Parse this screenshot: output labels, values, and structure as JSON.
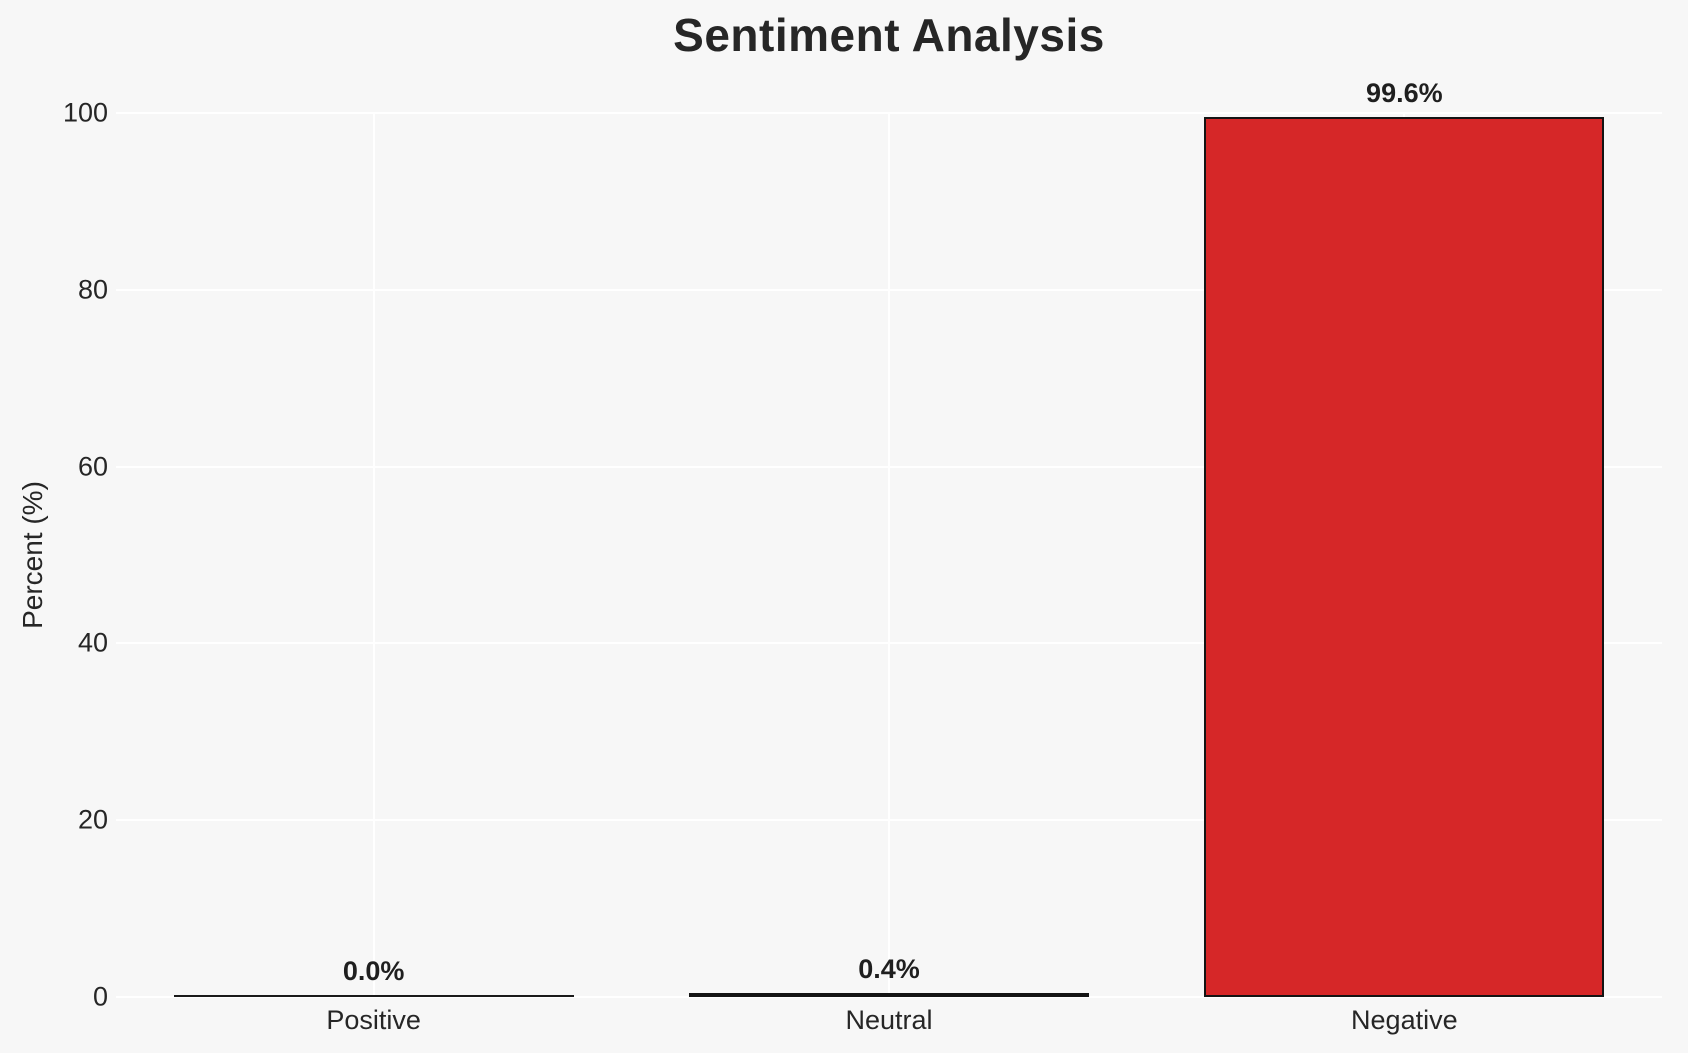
{
  "chart_data": {
    "type": "bar",
    "title": "Sentiment Analysis",
    "ylabel": "Percent (%)",
    "xlabel": "",
    "categories": [
      "Positive",
      "Neutral",
      "Negative"
    ],
    "values": [
      0.0,
      0.4,
      99.6
    ],
    "value_labels": [
      "0.0%",
      "0.4%",
      "99.6%"
    ],
    "ylim": [
      0,
      100
    ],
    "yticks": [
      0,
      20,
      40,
      60,
      80,
      100
    ],
    "grid": "on",
    "legend": "none",
    "colors": {
      "bar_fill": "#d62728",
      "bar_edge": "#141414",
      "background": "#f7f7f7",
      "gridline": "#ffffff",
      "text": "#262626"
    }
  }
}
